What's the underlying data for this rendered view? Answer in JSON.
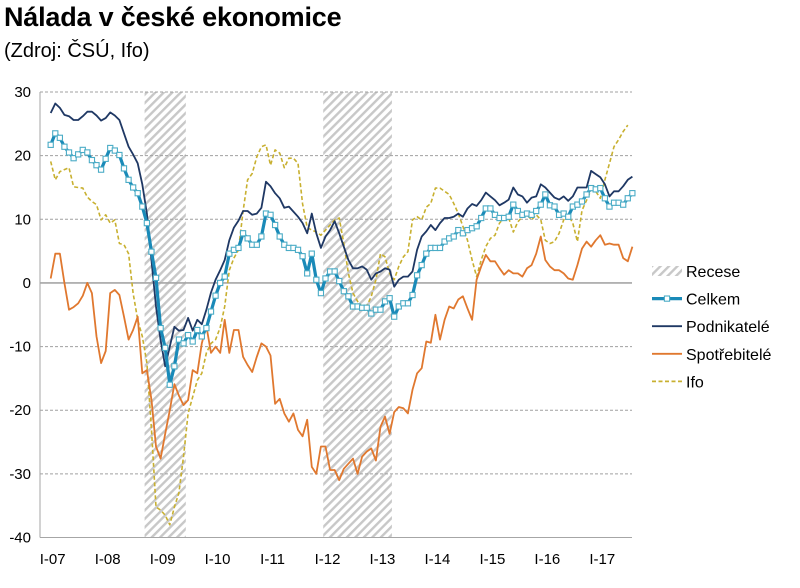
{
  "title": "Nálada v české ekonomice",
  "subtitle": "(Zdroj: ČSÚ, Ifo)",
  "chart_data": {
    "type": "line",
    "title": "Nálada v české ekonomice",
    "subtitle": "(Zdroj: ČSÚ, Ifo)",
    "xlabel": "",
    "ylabel": "",
    "start": "2007-01",
    "frequency": "monthly",
    "ylim": [
      -40,
      30
    ],
    "yticks": [
      "30",
      "20",
      "10",
      "0",
      "-10",
      "-20",
      "-30",
      "-40"
    ],
    "xticks": [
      "I-07",
      "I-08",
      "I-09",
      "I-10",
      "I-11",
      "I-12",
      "I-13",
      "I-14",
      "I-15",
      "I-16",
      "I-17"
    ],
    "grid": true,
    "legend_position": "right",
    "recessions": {
      "name": "Recese",
      "periods": [
        [
          "2008-10",
          "2009-06"
        ],
        [
          "2012-01",
          "2013-03"
        ]
      ]
    },
    "series": [
      {
        "name": "Celkem",
        "color": "#1a8ab8",
        "marker": "square",
        "values": [
          21.7,
          23.5,
          22.8,
          21.4,
          20.5,
          19.6,
          20.2,
          20.9,
          20.5,
          19.3,
          18.5,
          17.8,
          19.5,
          21.2,
          20.8,
          20.1,
          18,
          16.2,
          15,
          14.1,
          12,
          9.4,
          4.9,
          0.8,
          -7.1,
          -10.2,
          -16,
          -13.1,
          -8.9,
          -9.5,
          -8.2,
          -9.2,
          -7.4,
          -8.4,
          -7.1,
          -4.5,
          -2,
          0,
          1,
          4.6,
          5.2,
          5.5,
          7.8,
          7,
          6,
          6,
          7.3,
          10.9,
          10.7,
          9.1,
          7.3,
          6,
          5.5,
          5.5,
          5.2,
          4.2,
          1.5,
          4.6,
          0.5,
          -1.6,
          0.7,
          1.8,
          1.8,
          0.3,
          -1.3,
          -2.1,
          -3.7,
          -3.7,
          -3.9,
          -3.9,
          -4.8,
          -4.2,
          -4.2,
          -2.9,
          -2.4,
          -5.3,
          -3.7,
          -3.2,
          -3.2,
          -1.9,
          1.2,
          2.8,
          4.6,
          5.5,
          5.5,
          5.5,
          6.5,
          7,
          7.3,
          8.3,
          7.8,
          8.3,
          8.6,
          8.9,
          10.2,
          11.7,
          11.7,
          10.7,
          10.2,
          10.2,
          10.4,
          12.3,
          11.3,
          10.7,
          10.9,
          10.7,
          11.3,
          12.3,
          13.9,
          12.2,
          12,
          10.7,
          10.9,
          10.4,
          12,
          12.3,
          12.8,
          13.9,
          14.9,
          14.7,
          14.9,
          13.3,
          12,
          12.6,
          12.6,
          12.3,
          13.3,
          14.1
        ]
      },
      {
        "name": "Podnikatelé",
        "color": "#1f3864",
        "values": [
          26.7,
          28.2,
          27.5,
          26.4,
          26.2,
          25.6,
          25.6,
          26.2,
          26.9,
          26.9,
          26.3,
          25.5,
          25.9,
          26.8,
          26.3,
          25.6,
          23.5,
          21.4,
          20.2,
          18.8,
          15.5,
          10.9,
          3.5,
          -3.7,
          -9,
          -13.1,
          -10,
          -6.9,
          -7.5,
          -7.4,
          -5.5,
          -7.5,
          -5.8,
          -6.5,
          -4.2,
          -1.5,
          0.5,
          2,
          3.6,
          6.7,
          8.7,
          9.8,
          11.3,
          11.3,
          10.7,
          10.9,
          11.8,
          15.9,
          15.2,
          14.1,
          13.3,
          11.8,
          12,
          11.2,
          10.4,
          9.4,
          7.8,
          10.9,
          7.8,
          5.5,
          7.3,
          8.3,
          9.7,
          7.8,
          5.7,
          3.6,
          2.3,
          2.3,
          2.6,
          2.1,
          0.5,
          1.5,
          1.8,
          2.3,
          2.1,
          -0.6,
          0.5,
          1,
          1,
          1.8,
          5.2,
          7.3,
          8.1,
          9.1,
          8.3,
          9.4,
          10.2,
          10.2,
          10.4,
          10.9,
          10.4,
          11.7,
          12.4,
          12.1,
          13,
          14.2,
          13.6,
          13,
          12.2,
          12.6,
          13.1,
          15,
          13.9,
          13.6,
          12.6,
          13.4,
          13.6,
          15.5,
          15,
          14.2,
          13.4,
          13.1,
          13.6,
          12.9,
          13.6,
          15,
          15,
          15,
          17.6,
          17.1,
          16.6,
          15.5,
          13.6,
          14.4,
          14.4,
          15.2,
          16.2,
          16.7
        ]
      },
      {
        "name": "Spotřebitelé",
        "color": "#e0782f",
        "values": [
          0.7,
          4.6,
          4.6,
          0,
          -4.2,
          -3.8,
          -3.2,
          -2,
          0,
          -1.6,
          -8.4,
          -12.6,
          -10.7,
          -1.6,
          -1.1,
          -1.9,
          -5.3,
          -8.9,
          -7.4,
          -5.3,
          -14.2,
          -13.7,
          -18.4,
          -25.7,
          -27.6,
          -23.7,
          -20,
          -15.9,
          -17.7,
          -19.2,
          -18.4,
          -13.7,
          -14.2,
          -9.5,
          -6.8,
          -11,
          -10,
          -11,
          -5.8,
          -11,
          -7.4,
          -7.4,
          -11.6,
          -12.9,
          -14,
          -11.6,
          -9.5,
          -10,
          -11.4,
          -19,
          -18.2,
          -20.5,
          -21.8,
          -20.5,
          -23.1,
          -24.1,
          -21.5,
          -28.9,
          -30,
          -25.7,
          -25.7,
          -29.4,
          -29.4,
          -31,
          -29.2,
          -28.4,
          -27.6,
          -30,
          -27.3,
          -26.5,
          -26,
          -27.9,
          -22.6,
          -21,
          -23.7,
          -20.3,
          -19.5,
          -19.7,
          -20.5,
          -16.8,
          -14.2,
          -13.4,
          -9.2,
          -9.4,
          -5,
          -8.9,
          -5.8,
          -3.7,
          -4,
          -2.6,
          -2.1,
          -4,
          -5.8,
          0.5,
          2.6,
          4.4,
          3.4,
          3.4,
          2.3,
          1.3,
          2,
          1.5,
          1.5,
          1,
          2.3,
          2.8,
          4.6,
          7.3,
          3.6,
          2.6,
          2,
          2,
          1.5,
          0.7,
          0.5,
          2.8,
          5.4,
          6.5,
          5.7,
          6.7,
          7.5,
          6,
          6.2,
          6,
          6,
          3.9,
          3.4,
          5.7
        ]
      },
      {
        "name": "Ifo",
        "color": "#c8b030",
        "dashed": true,
        "values": [
          19.1,
          16.2,
          17.5,
          17.8,
          18.1,
          15.1,
          15,
          14.9,
          13.5,
          12.8,
          12.3,
          9.9,
          10.7,
          9.4,
          9.9,
          6.2,
          6,
          4.6,
          -1.6,
          -5.8,
          -8.4,
          -12.6,
          -23.1,
          -35.2,
          -35.7,
          -36.5,
          -38,
          -35.2,
          -33,
          -27.3,
          -20.5,
          -17.9,
          -15.3,
          -14.2,
          -11,
          -9.5,
          -8.9,
          -7,
          -3.7,
          2,
          3.9,
          5.2,
          11.3,
          16.2,
          17.2,
          19.8,
          21.4,
          21.7,
          18.5,
          20.9,
          20.4,
          18.1,
          19.6,
          19.6,
          18.8,
          12.4,
          8.7,
          8.3,
          8,
          7.5,
          8.3,
          9.1,
          9.9,
          10.2,
          6.2,
          1.5,
          -1.6,
          -2.9,
          -3.7,
          -3.7,
          -2.1,
          0.5,
          4.6,
          4.1,
          1.5,
          0.5,
          2.6,
          4.1,
          4.9,
          9.9,
          10.4,
          9.9,
          11.9,
          12.5,
          14.9,
          14.9,
          14.4,
          13.9,
          12.5,
          10.9,
          8.9,
          6.7,
          3.6,
          1,
          3.6,
          5.7,
          7,
          7.5,
          9.4,
          10.2,
          10.2,
          8,
          9.6,
          10.4,
          10.7,
          9.9,
          10.7,
          9.9,
          6.7,
          6.2,
          6.5,
          7.8,
          9.9,
          10.7,
          9.4,
          6.5,
          11.4,
          13,
          14.6,
          14.4,
          13.3,
          16.2,
          18.8,
          21.4,
          22.5,
          23.8,
          24.8,
          null
        ]
      }
    ]
  }
}
